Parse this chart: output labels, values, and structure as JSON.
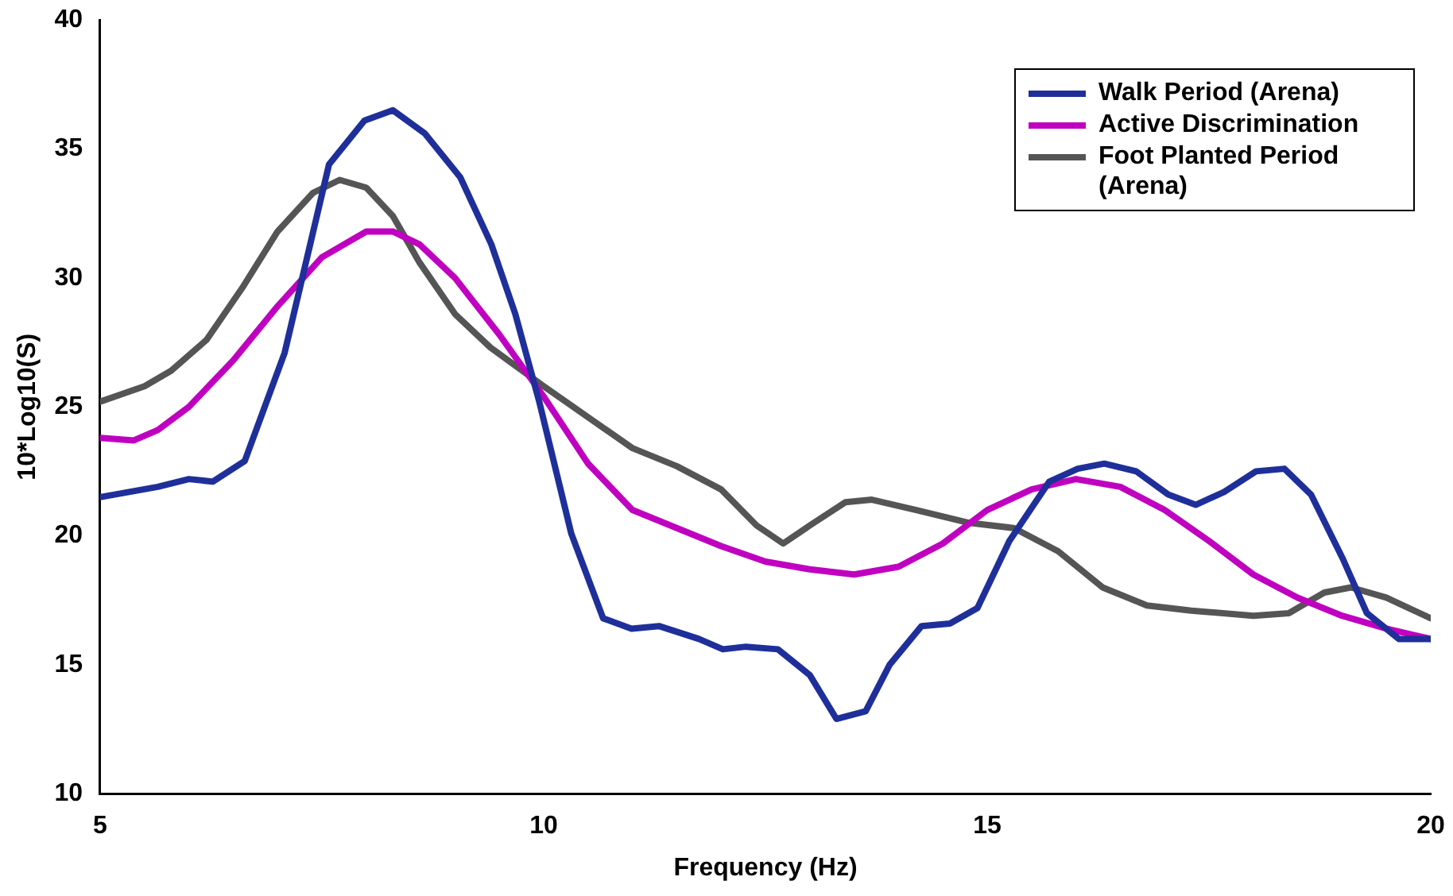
{
  "chart_data": {
    "type": "line",
    "xlabel": "Frequency (Hz)",
    "ylabel": "10*Log10(S)",
    "xlim": [
      5,
      20
    ],
    "ylim": [
      10,
      40
    ],
    "xticks": [
      5,
      10,
      15,
      20
    ],
    "yticks": [
      10,
      15,
      20,
      25,
      30,
      35,
      40
    ],
    "grid": false,
    "legend": "top right",
    "marker": "none",
    "line_style": "solid",
    "series": [
      {
        "name": "Walk Period (Arena)",
        "color": "#1f2f9a",
        "x": [
          5,
          5.65,
          6.0,
          6.27,
          6.63,
          7.08,
          7.58,
          7.98,
          8.3,
          8.66,
          9.06,
          9.41,
          9.68,
          9.95,
          10.31,
          10.67,
          10.99,
          11.3,
          11.75,
          12.02,
          12.28,
          12.64,
          13.0,
          13.3,
          13.63,
          13.9,
          14.26,
          14.58,
          14.89,
          15.25,
          15.7,
          16.02,
          16.32,
          16.68,
          17.04,
          17.35,
          17.67,
          18.03,
          18.35,
          18.65,
          19.01,
          19.28,
          19.64,
          20
        ],
        "values": [
          21.5,
          21.9,
          22.2,
          22.1,
          22.9,
          27.1,
          34.4,
          36.1,
          36.5,
          35.6,
          33.9,
          31.3,
          28.6,
          25.2,
          20.1,
          16.8,
          16.4,
          16.5,
          16.0,
          15.6,
          15.7,
          15.6,
          14.6,
          12.9,
          13.2,
          15.0,
          16.5,
          16.6,
          17.2,
          19.8,
          22.1,
          22.6,
          22.8,
          22.5,
          21.6,
          21.2,
          21.7,
          22.5,
          22.6,
          21.6,
          19.1,
          17.0,
          16.0,
          16.0
        ]
      },
      {
        "name": "Active Discrimination",
        "color": "#c000c0",
        "x": [
          5,
          5.38,
          5.65,
          6.0,
          6.5,
          7.0,
          7.5,
          8.0,
          8.3,
          8.6,
          9.0,
          9.5,
          10,
          10.5,
          11,
          11.5,
          12,
          12.5,
          13,
          13.5,
          14,
          14.5,
          15,
          15.5,
          16,
          16.5,
          17,
          17.5,
          18,
          18.5,
          19,
          19.5,
          20
        ],
        "values": [
          23.8,
          23.7,
          24.1,
          25.0,
          26.8,
          28.9,
          30.8,
          31.8,
          31.8,
          31.3,
          30.0,
          27.8,
          25.4,
          22.8,
          21.0,
          20.3,
          19.6,
          19.0,
          18.7,
          18.5,
          18.8,
          19.7,
          21.0,
          21.8,
          22.2,
          21.9,
          21.0,
          19.8,
          18.5,
          17.6,
          16.9,
          16.4,
          16.0
        ]
      },
      {
        "name": "Foot Planted Period (Arena)",
        "color": "#555555",
        "x": [
          5,
          5.5,
          5.8,
          6.2,
          6.6,
          7.0,
          7.4,
          7.7,
          8.0,
          8.3,
          8.6,
          9.0,
          9.4,
          10,
          10.5,
          11,
          11.5,
          12,
          12.4,
          12.7,
          13.0,
          13.4,
          13.7,
          14.2,
          14.8,
          15.3,
          15.8,
          16.3,
          16.8,
          17.3,
          18.0,
          18.4,
          18.8,
          19.1,
          19.5,
          20
        ],
        "values": [
          25.2,
          25.8,
          26.4,
          27.6,
          29.6,
          31.8,
          33.3,
          33.8,
          33.5,
          32.4,
          30.6,
          28.6,
          27.3,
          25.8,
          24.6,
          23.4,
          22.7,
          21.8,
          20.4,
          19.7,
          20.4,
          21.3,
          21.4,
          21.0,
          20.5,
          20.3,
          19.4,
          18.0,
          17.3,
          17.1,
          16.9,
          17.0,
          17.8,
          18.0,
          17.6,
          16.8
        ]
      }
    ]
  }
}
